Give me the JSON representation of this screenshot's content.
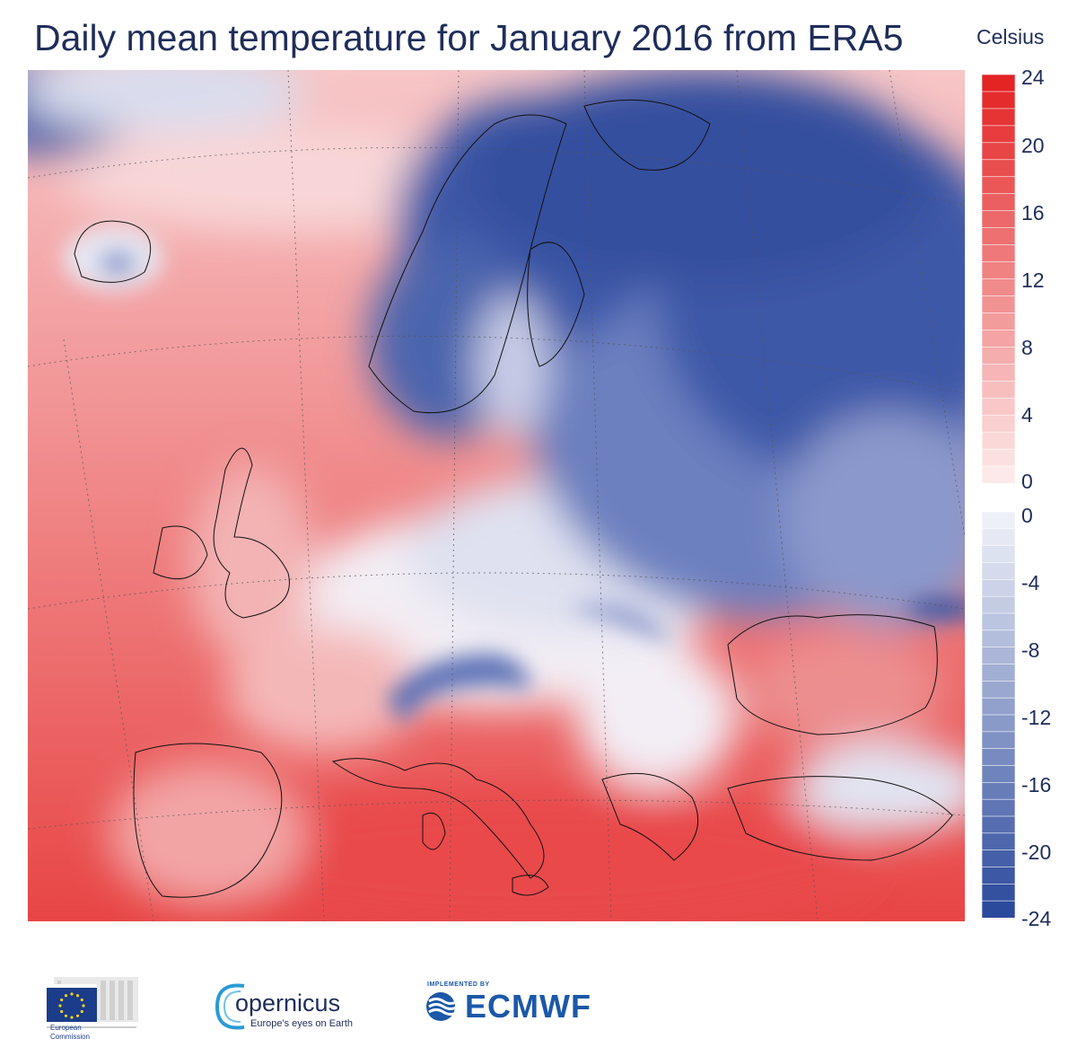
{
  "title": "Daily mean temperature for January 2016 from ERA5",
  "unit_label": "Celsius",
  "colorbar": {
    "warm_ticks": [
      "24",
      "20",
      "16",
      "12",
      "8",
      "4",
      "0"
    ],
    "cold_ticks": [
      "0",
      "-4",
      "-8",
      "-12",
      "-16",
      "-20",
      "-24"
    ],
    "warm_colors": [
      "#fde9e9",
      "#e42324"
    ],
    "cold_colors": [
      "#eef0f8",
      "#2c4a9c"
    ],
    "range": [
      -24,
      24
    ],
    "step": 2
  },
  "map": {
    "region": "Europe",
    "warm_color": "#ef6d6d",
    "cold_color": "#3a57a6",
    "neutral_color": "#f6f0f3"
  },
  "logos": {
    "ec_line1": "European",
    "ec_line2": "Commission",
    "copernicus_name": "opernicus",
    "copernicus_tagline": "Europe's eyes on Earth",
    "ecmwf_implemented": "IMPLEMENTED BY",
    "ecmwf_name": "ECMWF"
  }
}
